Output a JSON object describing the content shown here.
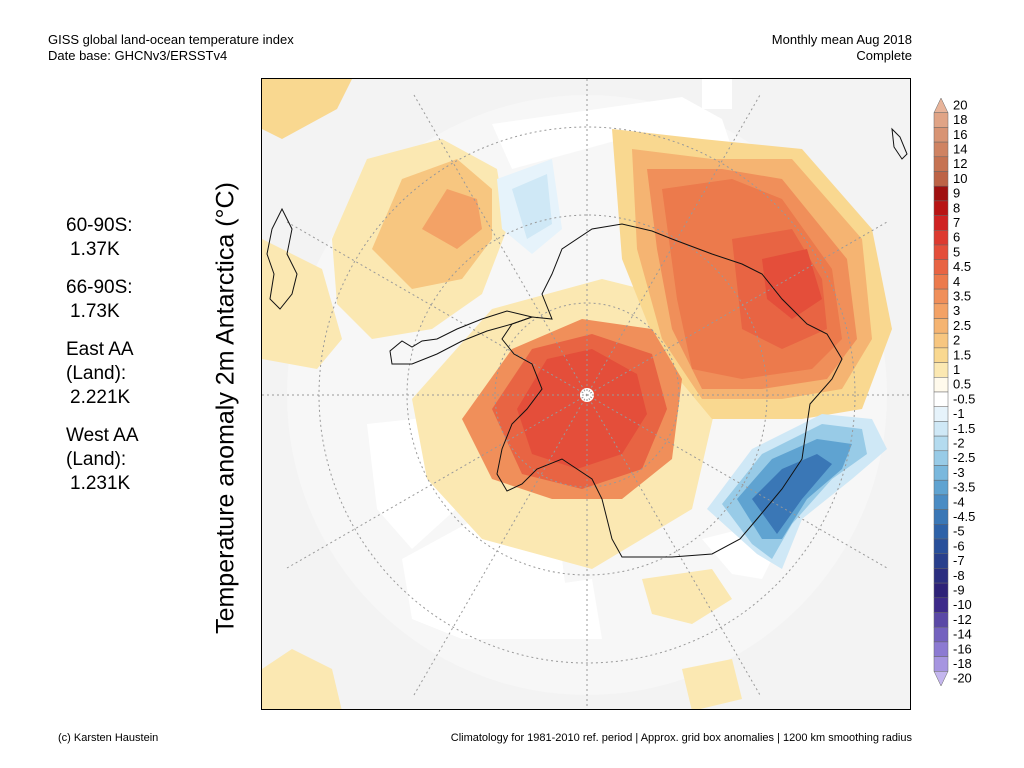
{
  "header": {
    "title": "GISS global land-ocean temperature index",
    "database": "Date base: GHCNv3/ERSSTv4",
    "period": "Monthly mean Aug 2018",
    "status": "Complete"
  },
  "ylabel": "Temperature anomaly 2m Antarctica (°C)",
  "stats": [
    {
      "label": "60-90S:",
      "value": "1.37K"
    },
    {
      "label": "66-90S:",
      "value": "1.73K"
    },
    {
      "label": "East AA",
      "label2": "(Land):",
      "value": "2.221K"
    },
    {
      "label": "West AA",
      "label2": "(Land):",
      "value": "1.231K"
    }
  ],
  "colorbar": {
    "labels": [
      "20",
      "18",
      "16",
      "14",
      "12",
      "10",
      "9",
      "8",
      "7",
      "6",
      "5",
      "4.5",
      "4",
      "3.5",
      "3",
      "2.5",
      "2",
      "1.5",
      "1",
      "0.5",
      "-0.5",
      "-1",
      "-1.5",
      "-2",
      "-2.5",
      "-3",
      "-3.5",
      "-4",
      "-4.5",
      "-5",
      "-6",
      "-7",
      "-8",
      "-9",
      "-10",
      "-12",
      "-14",
      "-16",
      "-18",
      "-20"
    ],
    "colors": [
      "#e8b49a",
      "#e0a486",
      "#d89474",
      "#cf8362",
      "#c67352",
      "#bd6346",
      "#a01010",
      "#b81414",
      "#cf2222",
      "#dd3a30",
      "#e44e3a",
      "#e86443",
      "#ec7a4c",
      "#f08f5a",
      "#f3a266",
      "#f5b472",
      "#f7c680",
      "#f9d890",
      "#fbe8b2",
      "#fffaec",
      "#ffffff",
      "#e6f3fb",
      "#cfe8f6",
      "#b4dbef",
      "#98cbe7",
      "#7ab8dd",
      "#5fa3d1",
      "#4a8cc4",
      "#3a77b6",
      "#2e62a8",
      "#284f9a",
      "#283f8c",
      "#2b2e80",
      "#2e2278",
      "#3d2a8a",
      "#5a48a6",
      "#7462bf",
      "#8c7ad2",
      "#a695e0",
      "#c4b6ee"
    ]
  },
  "footer": {
    "credit": "(c) Karsten Haustein",
    "note": "Climatology for 1981-2010 ref. period | Approx. grid box anomalies | 1200 km smoothing radius"
  }
}
